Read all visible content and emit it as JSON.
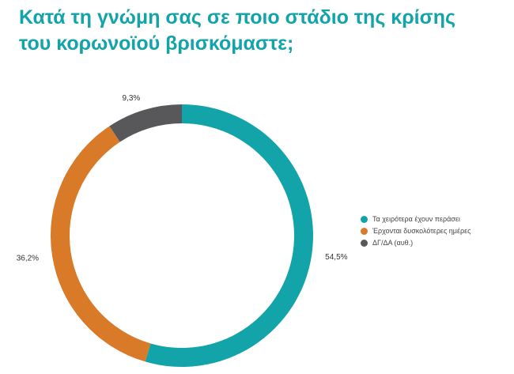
{
  "title": {
    "line1": "Κατά τη γνώμη σας σε ποιο στάδιο της κρίσης",
    "line2": "του κορωνοϊού βρισκόμαστε;"
  },
  "chart_data": {
    "type": "pie",
    "variant": "donut",
    "categories": [
      "Τα χειρότερα έχουν περάσει",
      "Έρχονται δυσκολότερες ημέρες",
      "ΔΓ/ΔΑ (αυθ.)"
    ],
    "values": [
      54.5,
      36.2,
      9.3
    ],
    "labels": [
      "54,5%",
      "36,2%",
      "9,3%"
    ],
    "colors": [
      "#12a4a8",
      "#d97a28",
      "#58585a"
    ],
    "start": "top, clockwise",
    "legend_position": "right"
  }
}
